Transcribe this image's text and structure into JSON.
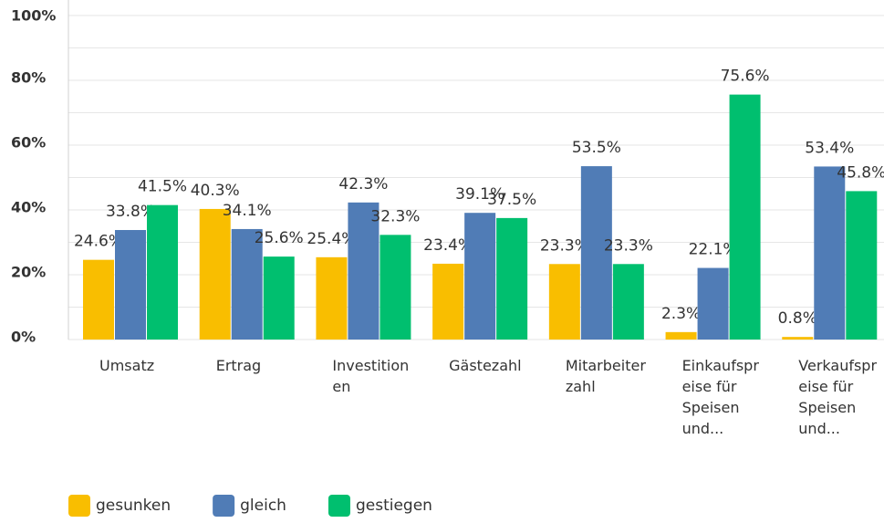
{
  "chart_data": {
    "type": "bar",
    "categories": [
      "Umsatz",
      "Ertrag",
      "Investitionen",
      "Gästezahl",
      "Mitarbeiterzahl",
      "Einkaufspreise für Speisen und...",
      "Verkaufspreise für Speisen und..."
    ],
    "series": [
      {
        "name": "gesunken",
        "color": "#f9be00",
        "values": [
          24.6,
          40.3,
          25.4,
          23.4,
          23.3,
          2.3,
          0.8
        ],
        "value_labels": [
          "24.6%",
          "40.3%",
          "25.4%",
          "23.4%",
          "23.3%",
          "2.3%",
          "0.8%"
        ]
      },
      {
        "name": "gleich",
        "color": "#507cb6",
        "values": [
          33.8,
          34.1,
          42.3,
          39.1,
          53.5,
          22.1,
          53.4
        ],
        "value_labels": [
          "33.8%",
          "34.1%",
          "42.3%",
          "39.1%",
          "53.5%",
          "22.1%",
          "53.4%"
        ]
      },
      {
        "name": "gestiegen",
        "color": "#00bf6f",
        "values": [
          41.5,
          25.6,
          32.3,
          37.5,
          23.3,
          75.6,
          45.8
        ],
        "value_labels": [
          "41.5%",
          "25.6%",
          "32.3%",
          "37.5%",
          "23.3%",
          "75.6%",
          "45.8%"
        ]
      }
    ],
    "ylim": [
      0,
      100
    ],
    "yticks": [
      {
        "value": 0,
        "label": "0%"
      },
      {
        "value": 20,
        "label": "20%"
      },
      {
        "value": 40,
        "label": "40%"
      },
      {
        "value": 60,
        "label": "60%"
      },
      {
        "value": 80,
        "label": "80%"
      },
      {
        "value": 100,
        "label": "100%"
      }
    ],
    "minor_yticks": [
      10,
      30,
      50,
      70,
      90
    ],
    "grid": true,
    "legend": "bottom"
  }
}
